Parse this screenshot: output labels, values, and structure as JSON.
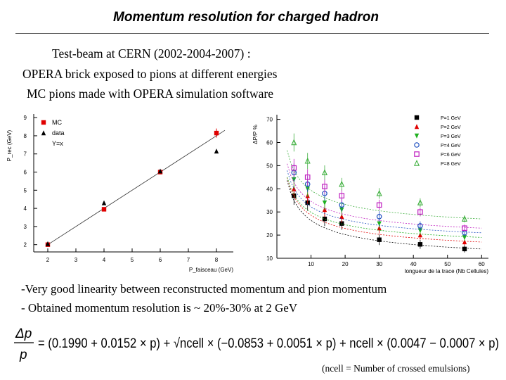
{
  "slide": {
    "title": "Momentum resolution for charged hadron",
    "intro": [
      "Test-beam at CERN (2002-2004-2007) :",
      "OPERA brick exposed to pions at different energies",
      "MC pions made with OPERA simulation software"
    ],
    "bullets": [
      "-Very good linearity between reconstructed momentum and pion momentum",
      "- Obtained momentum resolution is ~ 20%-30% at 2 GeV"
    ],
    "formula": {
      "lhs_num": "Δp",
      "lhs_den": "p",
      "rhs": "= (0.1990 + 0.0152 × p) + √ncell × (−0.0853 + 0.0051 × p) + ncell × (0.0047 − 0.0007 × p)"
    },
    "note": "(ncell = Number of crossed emulsions)"
  },
  "colors": {
    "mc": "#e00000",
    "data": "#000000",
    "fit": "#333333"
  },
  "chart_data": [
    {
      "type": "scatter",
      "title": "",
      "xlabel": "P_faisceau (GeV)",
      "ylabel": "P_rec (GeV)",
      "xlim": [
        1.5,
        8.6
      ],
      "ylim": [
        1.6,
        9.2
      ],
      "xticks": [
        2,
        3,
        4,
        5,
        6,
        7,
        8
      ],
      "yticks": [
        2,
        3,
        4,
        5,
        6,
        7,
        8,
        9
      ],
      "legend": {
        "position": "top-left",
        "entries": [
          "MC",
          "data",
          "Y=x"
        ]
      },
      "series": [
        {
          "name": "MC",
          "marker": "square",
          "color": "#e00000",
          "x": [
            2,
            4,
            6,
            8
          ],
          "y": [
            2.0,
            3.95,
            6.0,
            8.15
          ],
          "err": [
            0.05,
            0.08,
            0.12,
            0.25
          ]
        },
        {
          "name": "data",
          "marker": "triangle",
          "color": "#000000",
          "x": [
            2,
            4,
            6,
            8
          ],
          "y": [
            2.05,
            4.3,
            6.05,
            7.15
          ],
          "err": [
            0,
            0,
            0,
            0
          ]
        },
        {
          "name": "Y=x",
          "kind": "line",
          "x": [
            2,
            8.3
          ],
          "y": [
            2,
            8.3
          ]
        }
      ]
    },
    {
      "type": "scatter",
      "title": "",
      "xlabel": "longueur de la trace (Nb Cellules)",
      "ylabel": "ΔP/P %",
      "xlim": [
        0,
        62
      ],
      "ylim": [
        10,
        72
      ],
      "xticks": [
        10,
        20,
        30,
        40,
        50,
        60
      ],
      "yticks": [
        10,
        20,
        30,
        40,
        50,
        60,
        70
      ],
      "legend": {
        "position": "top-right",
        "entries": [
          "P=1 GeV",
          "P=2 GeV",
          "P=3 GeV",
          "P=4 GeV",
          "P=6 GeV",
          "P=8 GeV"
        ]
      },
      "series": [
        {
          "name": "P=1 GeV",
          "marker": "square",
          "color": "#000000",
          "x": [
            5,
            9,
            14,
            19,
            30,
            42,
            55
          ],
          "y": [
            37,
            34,
            27,
            25,
            18,
            16,
            14
          ],
          "fit": {
            "a": 13,
            "b": 66
          }
        },
        {
          "name": "P=2 GeV",
          "marker": "triangle",
          "color": "#e00000",
          "x": [
            5,
            9,
            14,
            19,
            30,
            42,
            55
          ],
          "y": [
            40,
            37,
            31,
            28,
            23,
            20,
            17
          ],
          "fit": {
            "a": 17,
            "b": 62
          }
        },
        {
          "name": "P=3 GeV",
          "marker": "triangle-down",
          "color": "#20b020",
          "x": [
            5,
            9,
            14,
            19,
            30,
            42,
            55
          ],
          "y": [
            44,
            40,
            34,
            31,
            25,
            22,
            19
          ],
          "fit": {
            "a": 21,
            "b": 58
          }
        },
        {
          "name": "P=4 GeV",
          "marker": "circle",
          "color": "#2050c0",
          "x": [
            5,
            9,
            14,
            19,
            30,
            42,
            55
          ],
          "y": [
            47,
            42,
            38,
            33,
            28,
            24,
            21
          ],
          "fit": {
            "a": 23,
            "b": 60
          }
        },
        {
          "name": "P=6 GeV",
          "marker": "open-square",
          "color": "#c020c0",
          "x": [
            5,
            9,
            14,
            19,
            30,
            42,
            55
          ],
          "y": [
            49,
            45,
            41,
            37,
            33,
            30,
            23
          ],
          "fit": {
            "a": 25,
            "b": 62
          }
        },
        {
          "name": "P=8 GeV",
          "marker": "open-triangle",
          "color": "#40b040",
          "x": [
            5,
            9,
            14,
            19,
            30,
            42,
            55
          ],
          "y": [
            60,
            52,
            47,
            42,
            38,
            34,
            27
          ],
          "fit": {
            "a": 30,
            "b": 66
          }
        }
      ]
    }
  ]
}
